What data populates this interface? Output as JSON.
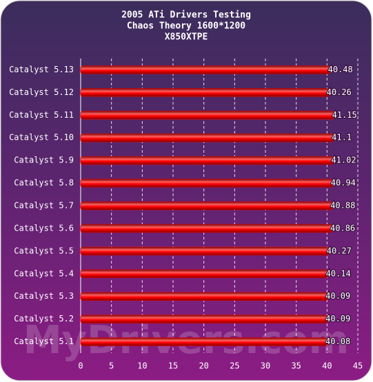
{
  "chart_data": {
    "type": "barh",
    "title": [
      "2005 ATi Drivers Testing",
      "Chaos Theory 1600*1200",
      "X850XTPE"
    ],
    "categories": [
      "Catalyst 5.13",
      "Catalyst 5.12",
      "Catalyst 5.11",
      "Catalyst 5.10",
      "Catalyst 5.9",
      "Catalyst 5.8",
      "Catalyst 5.7",
      "Catalyst 5.6",
      "Catalyst 5.5",
      "Catalyst 5.4",
      "Catalyst 5.3",
      "Catalyst 5.2",
      "Catalyst 5.1"
    ],
    "values": [
      40.48,
      40.26,
      41.15,
      41.1,
      41.02,
      40.94,
      40.88,
      40.86,
      40.27,
      40.14,
      40.09,
      40.09,
      40.08
    ],
    "color": "#ff0000",
    "xlim": [
      0,
      45
    ],
    "xticks": [
      0,
      5,
      10,
      15,
      20,
      25,
      30,
      35,
      40,
      45
    ],
    "grid": true,
    "watermark": "MyDrivers.com"
  }
}
